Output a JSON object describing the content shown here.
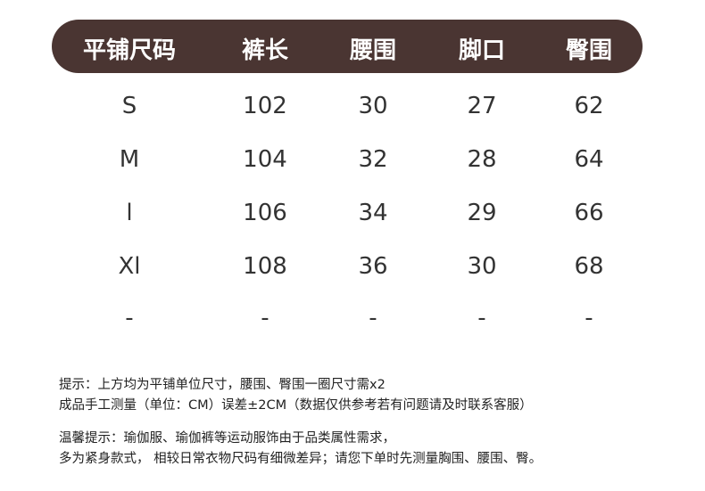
{
  "header_color": "#4a3532",
  "table": {
    "headers": [
      "平铺尺码",
      "裤长",
      "腰围",
      "脚口",
      "臀围"
    ],
    "rows": [
      [
        "S",
        "102",
        "30",
        "27",
        "62"
      ],
      [
        "M",
        "104",
        "32",
        "28",
        "64"
      ],
      [
        "l",
        "106",
        "34",
        "29",
        "66"
      ],
      [
        "Xl",
        "108",
        "36",
        "30",
        "68"
      ],
      [
        "-",
        "-",
        "-",
        "-",
        "-"
      ]
    ]
  },
  "notes": [
    "提示：上方均为平铺单位尺寸，腰围、臀围一圈尺寸需x2",
    "成品手工测量（单位：CM）误差±2CM（数据仅供参考若有问题请及时联系客服）",
    "温馨提示：瑜伽服、瑜伽裤等运动服饰由于品类属性需求，",
    "多为紧身款式， 相较日常衣物尺码有细微差异；请您下单时先测量胸围、腰围、臀。"
  ]
}
